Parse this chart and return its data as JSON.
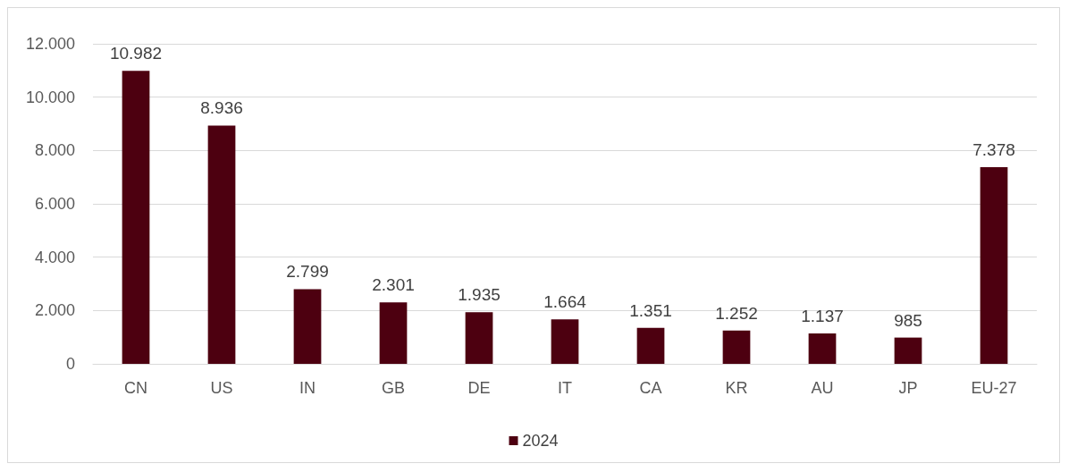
{
  "chart_data": {
    "type": "bar",
    "categories": [
      "CN",
      "US",
      "IN",
      "GB",
      "DE",
      "IT",
      "CA",
      "KR",
      "AU",
      "JP",
      "EU-27"
    ],
    "series": [
      {
        "name": "2024",
        "color": "#4d0010",
        "values": [
          10982,
          8936,
          2799,
          2301,
          1935,
          1664,
          1351,
          1252,
          1137,
          985,
          7378
        ],
        "value_labels": [
          "10.982",
          "8.936",
          "2.799",
          "2.301",
          "1.935",
          "1.664",
          "1.351",
          "1.252",
          "1.137",
          "985",
          "7.378"
        ]
      }
    ],
    "ylim": [
      0,
      12000
    ],
    "yticks": [
      {
        "value": 0,
        "label": "0"
      },
      {
        "value": 2000,
        "label": "2.000"
      },
      {
        "value": 4000,
        "label": "4.000"
      },
      {
        "value": 6000,
        "label": "6.000"
      },
      {
        "value": 8000,
        "label": "8.000"
      },
      {
        "value": 10000,
        "label": "10.000"
      },
      {
        "value": 12000,
        "label": "12.000"
      }
    ],
    "grid": "y",
    "legend": "bottom"
  }
}
